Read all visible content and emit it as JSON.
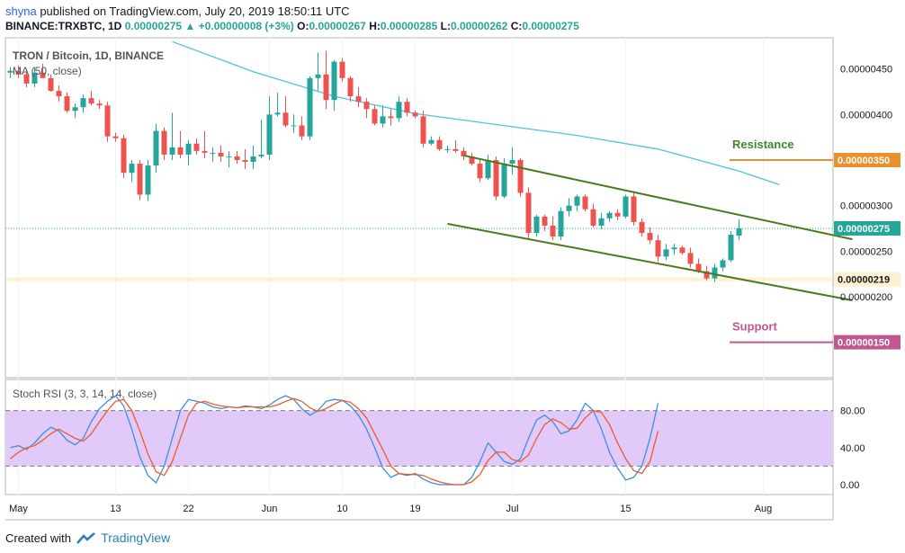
{
  "header": {
    "user": "shyna",
    "published_text": "published on TradingView.com, July 20, 2019 18:50:11 UTC",
    "symbol_line": "BINANCE:TRXBTC, 1D",
    "last": "0.00000275",
    "change": "+0.00000008 (+3%)",
    "o_label": "O:",
    "o_value": "0.00000267",
    "h_label": "H:",
    "h_value": "0.00000285",
    "l_label": "L:",
    "l_value": "0.00000262",
    "c_label": "C:",
    "c_value": "0.00000275"
  },
  "footer": {
    "created_with": "Created with",
    "brand": "TradingView"
  },
  "colors": {
    "up": "#26a69a",
    "down": "#ef5350",
    "ma": "#4fc3dc",
    "channel": "#4a7a1e",
    "resistance": "#e8912d",
    "support": "#c2568e",
    "rsi_k": "#3d8fe0",
    "rsi_d": "#f05a28",
    "rsi_band": "#e1c9fa",
    "price_label_bg": "#3f454f"
  },
  "chart_data": [
    {
      "type": "candlestick",
      "title": "TRON / Bitcoin, 1D, BINANCE",
      "indicator_label": "MA (50, close)",
      "ylim": [
        1.1e-06,
        5e-06
      ],
      "y_ticks": [
        "0.00000450",
        "0.00000400",
        "0.00000300",
        "0.00000250",
        "0.00000200"
      ],
      "x_ticks": [
        "May",
        "13",
        "22",
        "Jun",
        "10",
        "19",
        "Jul",
        "15",
        "Aug"
      ],
      "x_tick_dates": [
        "2019-05-01",
        "2019-05-13",
        "2019-05-22",
        "2019-06-01",
        "2019-06-10",
        "2019-06-19",
        "2019-07-01",
        "2019-07-15",
        "2019-08-01"
      ],
      "start_date": "2019-04-30",
      "ohlc": [
        [
          4.46e-06,
          4.52e-06,
          4.4e-06,
          4.48e-06
        ],
        [
          4.48e-06,
          4.54e-06,
          4.4e-06,
          4.44e-06
        ],
        [
          4.44e-06,
          4.5e-06,
          4.3e-06,
          4.34e-06
        ],
        [
          4.34e-06,
          4.52e-06,
          4.3e-06,
          4.46e-06
        ],
        [
          4.46e-06,
          4.56e-06,
          4.4e-06,
          4.4e-06
        ],
        [
          4.4e-06,
          4.44e-06,
          4.25e-06,
          4.26e-06
        ],
        [
          4.26e-06,
          4.32e-06,
          4.14e-06,
          4.2e-06
        ],
        [
          4.2e-06,
          4.24e-06,
          4.02e-06,
          4.04e-06
        ],
        [
          4.04e-06,
          4.12e-06,
          3.96e-06,
          4.08e-06
        ],
        [
          4.08e-06,
          4.22e-06,
          4.02e-06,
          4.18e-06
        ],
        [
          4.18e-06,
          4.26e-06,
          4.1e-06,
          4.12e-06
        ],
        [
          4.12e-06,
          4.16e-06,
          4.06e-06,
          4.1e-06
        ],
        [
          4.1e-06,
          4.14e-06,
          3.7e-06,
          3.76e-06
        ],
        [
          3.76e-06,
          3.8e-06,
          3.7e-06,
          3.74e-06
        ],
        [
          3.74e-06,
          3.78e-06,
          3.3e-06,
          3.36e-06
        ],
        [
          3.36e-06,
          3.5e-06,
          3.26e-06,
          3.46e-06
        ],
        [
          3.46e-06,
          3.5e-06,
          3.06e-06,
          3.12e-06
        ],
        [
          3.12e-06,
          3.5e-06,
          3.05e-06,
          3.44e-06
        ],
        [
          3.44e-06,
          3.9e-06,
          3.36e-06,
          3.82e-06
        ],
        [
          3.82e-06,
          3.86e-06,
          3.5e-06,
          3.56e-06
        ],
        [
          3.56e-06,
          4.02e-06,
          3.5e-06,
          3.64e-06
        ],
        [
          3.64e-06,
          3.82e-06,
          3.52e-06,
          3.56e-06
        ],
        [
          3.56e-06,
          3.72e-06,
          3.44e-06,
          3.68e-06
        ],
        [
          3.68e-06,
          3.74e-06,
          3.56e-06,
          3.6e-06
        ],
        [
          3.6e-06,
          3.82e-06,
          3.52e-06,
          3.58e-06
        ],
        [
          3.58e-06,
          3.64e-06,
          3.48e-06,
          3.58e-06
        ],
        [
          3.58e-06,
          3.66e-06,
          3.48e-06,
          3.54e-06
        ],
        [
          3.54e-06,
          3.6e-06,
          3.42e-06,
          3.54e-06
        ],
        [
          3.54e-06,
          3.6e-06,
          3.46e-06,
          3.5e-06
        ],
        [
          3.5e-06,
          3.62e-06,
          3.4e-06,
          3.48e-06
        ],
        [
          3.48e-06,
          3.66e-06,
          3.4e-06,
          3.54e-06
        ],
        [
          3.54e-06,
          3.94e-06,
          3.52e-06,
          3.56e-06
        ],
        [
          3.56e-06,
          4.2e-06,
          3.5e-06,
          4e-06
        ],
        [
          4e-06,
          4.24e-06,
          3.98e-06,
          4.02e-06
        ],
        [
          4.02e-06,
          4.2e-06,
          3.86e-06,
          3.88e-06
        ],
        [
          3.88e-06,
          4e-06,
          3.8e-06,
          3.88e-06
        ],
        [
          3.88e-06,
          3.98e-06,
          3.72e-06,
          3.76e-06
        ],
        [
          3.76e-06,
          4.42e-06,
          3.72e-06,
          4.4e-06
        ],
        [
          4.4e-06,
          4.68e-06,
          4.26e-06,
          4.44e-06
        ],
        [
          4.44e-06,
          4.7e-06,
          4.06e-06,
          4.16e-06
        ],
        [
          4.16e-06,
          4.6e-06,
          4.04e-06,
          4.58e-06
        ],
        [
          4.58e-06,
          4.62e-06,
          4.36e-06,
          4.4e-06
        ],
        [
          4.4e-06,
          4.42e-06,
          4.14e-06,
          4.2e-06
        ],
        [
          4.2e-06,
          4.3e-06,
          4.08e-06,
          4.14e-06
        ],
        [
          4.14e-06,
          4.18e-06,
          3.96e-06,
          4.06e-06
        ],
        [
          4.06e-06,
          4.1e-06,
          3.88e-06,
          3.9e-06
        ],
        [
          3.9e-06,
          4.1e-06,
          3.86e-06,
          3.98e-06
        ],
        [
          3.98e-06,
          4.06e-06,
          3.88e-06,
          3.96e-06
        ],
        [
          3.96e-06,
          4.2e-06,
          3.92e-06,
          4.14e-06
        ],
        [
          4.14e-06,
          4.18e-06,
          3.98e-06,
          4.02e-06
        ],
        [
          4.02e-06,
          4.04e-06,
          3.96e-06,
          3.98e-06
        ],
        [
          3.98e-06,
          4.04e-06,
          3.64e-06,
          3.68e-06
        ],
        [
          3.68e-06,
          3.76e-06,
          3.66e-06,
          3.72e-06
        ],
        [
          3.72e-06,
          3.76e-06,
          3.6e-06,
          3.62e-06
        ],
        [
          3.62e-06,
          3.66e-06,
          3.58e-06,
          3.62e-06
        ],
        [
          3.62e-06,
          3.72e-06,
          3.58e-06,
          3.6e-06
        ],
        [
          3.6e-06,
          3.64e-06,
          3.5e-06,
          3.54e-06
        ],
        [
          3.54e-06,
          3.58e-06,
          3.44e-06,
          3.46e-06
        ],
        [
          3.46e-06,
          3.52e-06,
          3.26e-06,
          3.3e-06
        ],
        [
          3.3e-06,
          3.56e-06,
          3.28e-06,
          3.5e-06
        ],
        [
          3.5e-06,
          3.54e-06,
          3.06e-06,
          3.1e-06
        ],
        [
          3.1e-06,
          3.52e-06,
          3.08e-06,
          3.46e-06
        ],
        [
          3.46e-06,
          3.64e-06,
          3.34e-06,
          3.5e-06
        ],
        [
          3.5e-06,
          3.52e-06,
          3.1e-06,
          3.14e-06
        ],
        [
          3.14e-06,
          3.2e-06,
          2.64e-06,
          2.7e-06
        ],
        [
          2.7e-06,
          2.9e-06,
          2.66e-06,
          2.88e-06
        ],
        [
          2.88e-06,
          2.9e-06,
          2.72e-06,
          2.78e-06
        ],
        [
          2.78e-06,
          2.88e-06,
          2.62e-06,
          2.66e-06
        ],
        [
          2.66e-06,
          2.98e-06,
          2.62e-06,
          2.94e-06
        ],
        [
          2.94e-06,
          3.08e-06,
          2.88e-06,
          3e-06
        ],
        [
          3e-06,
          3.12e-06,
          2.94e-06,
          3.1e-06
        ],
        [
          3.1e-06,
          3.12e-06,
          2.94e-06,
          2.96e-06
        ],
        [
          2.96e-06,
          3.02e-06,
          2.76e-06,
          2.78e-06
        ],
        [
          2.78e-06,
          2.92e-06,
          2.74e-06,
          2.86e-06
        ],
        [
          2.86e-06,
          2.94e-06,
          2.82e-06,
          2.92e-06
        ],
        [
          2.92e-06,
          2.96e-06,
          2.84e-06,
          2.88e-06
        ],
        [
          2.88e-06,
          3.12e-06,
          2.86e-06,
          3.1e-06
        ],
        [
          3.1e-06,
          3.16e-06,
          2.78e-06,
          2.82e-06
        ],
        [
          2.82e-06,
          2.86e-06,
          2.66e-06,
          2.7e-06
        ],
        [
          2.7e-06,
          2.76e-06,
          2.58e-06,
          2.62e-06
        ],
        [
          2.62e-06,
          2.68e-06,
          2.38e-06,
          2.44e-06
        ],
        [
          2.44e-06,
          2.58e-06,
          2.4e-06,
          2.52e-06
        ],
        [
          2.52e-06,
          2.58e-06,
          2.46e-06,
          2.54e-06
        ],
        [
          2.54e-06,
          2.56e-06,
          2.46e-06,
          2.48e-06
        ],
        [
          2.48e-06,
          2.54e-06,
          2.32e-06,
          2.36e-06
        ],
        [
          2.36e-06,
          2.42e-06,
          2.26e-06,
          2.28e-06
        ],
        [
          2.28e-06,
          2.34e-06,
          2.18e-06,
          2.2e-06
        ],
        [
          2.2e-06,
          2.36e-06,
          2.16e-06,
          2.32e-06
        ],
        [
          2.32e-06,
          2.42e-06,
          2.28e-06,
          2.4e-06
        ],
        [
          2.4e-06,
          2.72e-06,
          2.38e-06,
          2.68e-06
        ],
        [
          2.67e-06,
          2.85e-06,
          2.62e-06,
          2.75e-06
        ]
      ],
      "ma50": {
        "name": "MA (50, close)",
        "x_days": [
          20,
          30,
          40,
          50,
          60,
          70,
          80,
          90,
          95
        ],
        "values": [
          4.8e-06,
          4.47e-06,
          4.2e-06,
          4.01e-06,
          3.89e-06,
          3.77e-06,
          3.62e-06,
          3.38e-06,
          3.23e-06
        ]
      },
      "trend_lines": [
        {
          "name": "channel-upper",
          "start": [
            56,
            3.55e-06
          ],
          "end": [
            104,
            2.63e-06
          ]
        },
        {
          "name": "channel-lower",
          "start": [
            54,
            2.8e-06
          ],
          "end": [
            104,
            1.96e-06
          ]
        }
      ],
      "levels": [
        {
          "name": "Resistance",
          "value": 3.5e-06,
          "label": "0.00000350"
        },
        {
          "name": "Support",
          "value": 1.5e-06,
          "label": "0.00000150"
        }
      ],
      "last_price": {
        "value": 2.75e-06,
        "label": "0.00000275"
      },
      "highlight_price": {
        "value": 2.19e-06,
        "label": "0.00000219"
      }
    },
    {
      "type": "line",
      "title": "Stoch RSI (3, 3, 14, 14, close)",
      "ylim": [
        -10,
        110
      ],
      "y_ticks": [
        "80.00",
        "40.00",
        "0.00"
      ],
      "band": [
        20,
        80
      ],
      "series": [
        {
          "name": "K",
          "values": [
            40,
            42,
            38,
            45,
            55,
            62,
            58,
            48,
            43,
            50,
            68,
            82,
            90,
            96,
            85,
            60,
            30,
            10,
            2,
            20,
            50,
            80,
            92,
            90,
            88,
            84,
            82,
            84,
            83,
            85,
            84,
            82,
            86,
            92,
            96,
            92,
            82,
            75,
            80,
            90,
            92,
            91,
            85,
            75,
            60,
            40,
            18,
            8,
            12,
            10,
            12,
            6,
            2,
            0,
            0,
            0,
            0,
            8,
            25,
            45,
            35,
            25,
            22,
            28,
            50,
            70,
            75,
            68,
            55,
            58,
            70,
            88,
            80,
            60,
            35,
            18,
            5,
            8,
            20,
            50,
            88
          ]
        },
        {
          "name": "D",
          "values": [
            28,
            35,
            40,
            42,
            48,
            55,
            60,
            55,
            50,
            47,
            55,
            68,
            80,
            90,
            92,
            80,
            58,
            33,
            14,
            10,
            25,
            50,
            75,
            88,
            90,
            87,
            85,
            84,
            83,
            84,
            84,
            84,
            84,
            86,
            90,
            93,
            90,
            83,
            79,
            82,
            87,
            91,
            89,
            82,
            72,
            55,
            38,
            20,
            12,
            11,
            11,
            10,
            6,
            3,
            1,
            0,
            0,
            3,
            11,
            26,
            35,
            35,
            27,
            25,
            32,
            50,
            65,
            71,
            67,
            60,
            61,
            72,
            80,
            78,
            65,
            45,
            28,
            15,
            12,
            25,
            58
          ]
        }
      ]
    }
  ],
  "annotations": {
    "resistance": "Resistance",
    "support": "Support"
  }
}
